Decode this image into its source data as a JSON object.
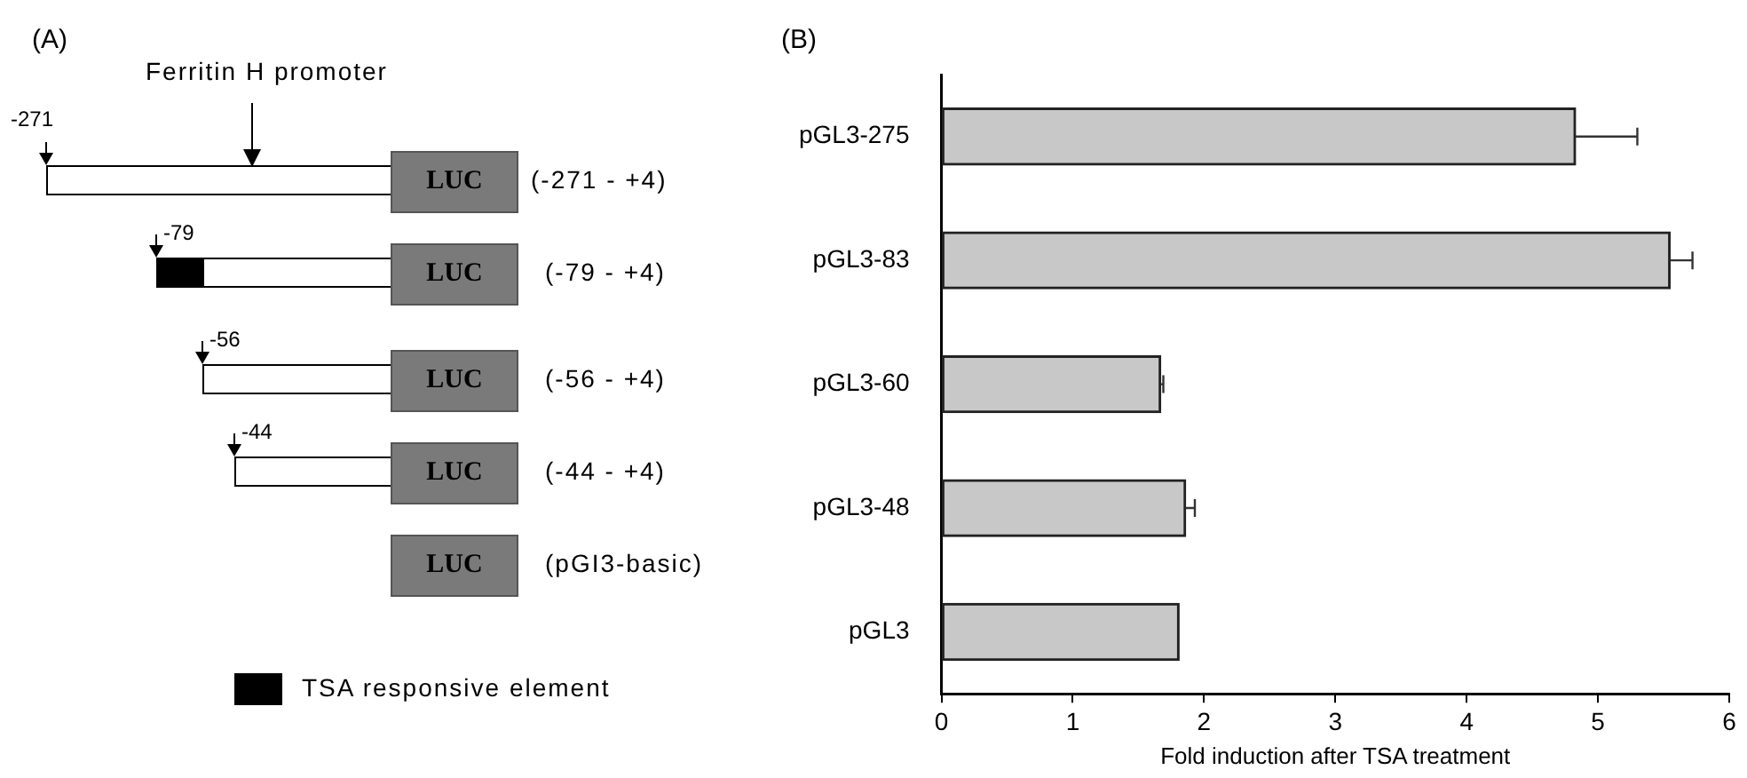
{
  "chart_data": [
    {
      "type": "other",
      "title": "(A)",
      "annotations": [
        "Ferritin H promoter",
        "-271",
        "-79",
        "-56",
        "-44",
        "LUC",
        "LUC",
        "LUC",
        "LUC",
        "LUC",
        "(-271 - +4)",
        "(-79 - +4)",
        "(-56 - +4)",
        "(-44 - +4)",
        "(pGI3-basic)",
        "TSA responsive element"
      ]
    },
    {
      "type": "bar",
      "title": "(B)",
      "orientation": "horizontal",
      "categories": [
        "pGL3-275",
        "pGL3-83",
        "pGL3-60",
        "pGL3-48",
        "pGL3"
      ],
      "values": [
        4.83,
        5.55,
        1.67,
        1.86,
        1.81
      ],
      "errors": [
        0.47,
        0.17,
        0.02,
        0.07,
        null
      ],
      "color": "#c8c8c8",
      "xlabel": "Fold induction after TSA treatment",
      "xlim": [
        0,
        6
      ],
      "xticks": [
        0,
        1,
        2,
        3,
        4,
        5,
        6
      ],
      "grid": false,
      "legend": false
    }
  ]
}
